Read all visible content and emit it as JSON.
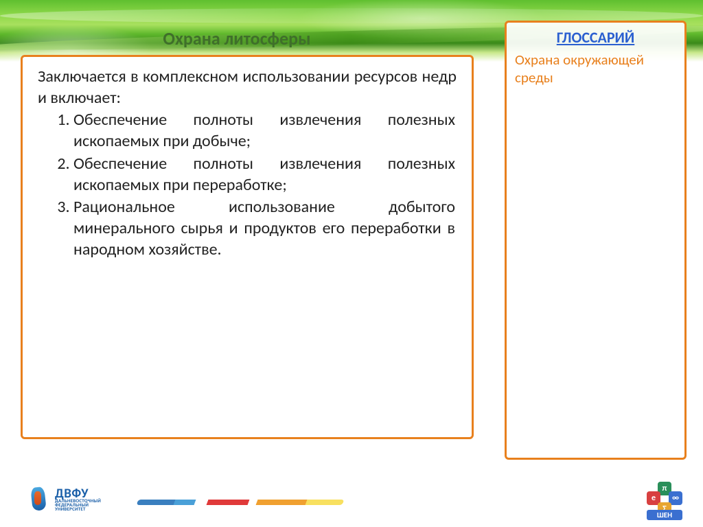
{
  "colors": {
    "box_border": "#e8801d",
    "title_color": "#3f6f2a",
    "glossary_title_color": "#2a5fd0",
    "glossary_term_color": "#e8801d",
    "body_text": "#222222"
  },
  "title": "Охрана литосферы",
  "main": {
    "intro": "Заключается в комплексном использовании ресурсов недр и включает:",
    "items": [
      "Обеспечение полноты извлечения полезных ископаемых при добыче;",
      "Обеспечение полноты извлечения полезных ископаемых при переработке;",
      "Рациональное использование добытого минерального сырья и продуктов его переработки в народном хозяйстве."
    ]
  },
  "sidebar": {
    "heading": "ГЛОССАРИЙ",
    "term": "Охрана окружающей среды"
  },
  "footer": {
    "logo_left_main": "ДВФУ",
    "logo_left_sub1": "ДАЛЬНЕВОСТОЧНЫЙ",
    "logo_left_sub2": "ФЕДЕРАЛЬНЫЙ",
    "logo_left_sub3": "УНИВЕРСИТЕТ",
    "logo_right_label": "ШЕН",
    "hex_symbols": [
      "π",
      "e",
      "∞",
      "Σ"
    ]
  }
}
